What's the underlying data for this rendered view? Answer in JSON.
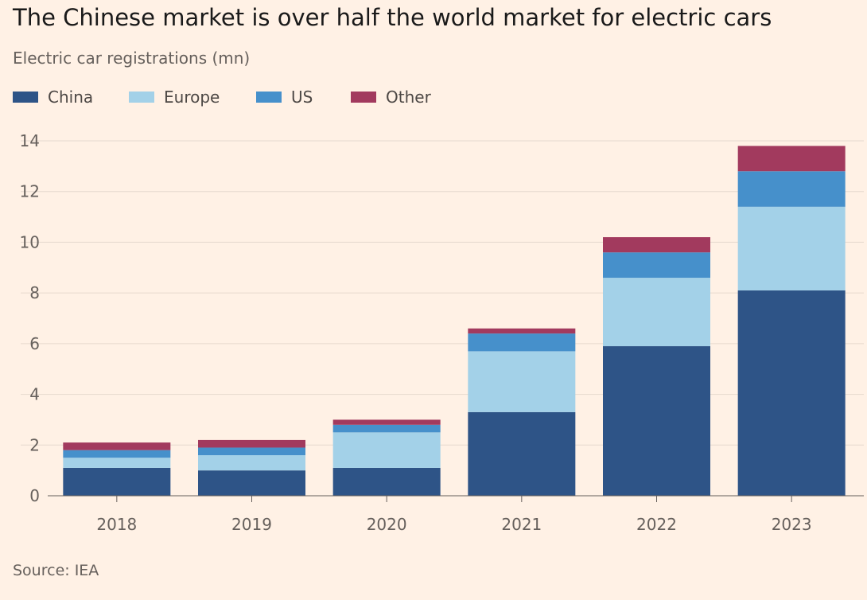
{
  "header": {
    "title": "The Chinese market is over half the world market for electric cars",
    "subtitle": "Electric car registrations (mn)"
  },
  "legend": [
    {
      "label": "China",
      "color": "#2E5487"
    },
    {
      "label": "Europe",
      "color": "#A3D1E8"
    },
    {
      "label": "US",
      "color": "#4690CB"
    },
    {
      "label": "Other",
      "color": "#A23A5E"
    }
  ],
  "footer": {
    "source": "Source: IEA"
  },
  "chart_data": {
    "type": "bar",
    "stacked": true,
    "title": "The Chinese market is over half the world market for electric cars",
    "ylabel": "Electric car registrations (mn)",
    "xlabel": "",
    "categories": [
      "2018",
      "2019",
      "2020",
      "2021",
      "2022",
      "2023"
    ],
    "series": [
      {
        "name": "China",
        "color": "#2E5487",
        "values": [
          1.1,
          1.0,
          1.1,
          3.3,
          5.9,
          8.1
        ]
      },
      {
        "name": "Europe",
        "color": "#A3D1E8",
        "values": [
          0.4,
          0.6,
          1.4,
          2.4,
          2.7,
          3.3
        ]
      },
      {
        "name": "US",
        "color": "#4690CB",
        "values": [
          0.3,
          0.3,
          0.3,
          0.7,
          1.0,
          1.4
        ]
      },
      {
        "name": "Other",
        "color": "#A23A5E",
        "values": [
          0.3,
          0.3,
          0.2,
          0.2,
          0.6,
          1.0
        ]
      }
    ],
    "ylim": [
      0,
      14
    ],
    "yticks": [
      0,
      2,
      4,
      6,
      8,
      10,
      12,
      14
    ],
    "grid": true,
    "legend_position": "top-left"
  }
}
